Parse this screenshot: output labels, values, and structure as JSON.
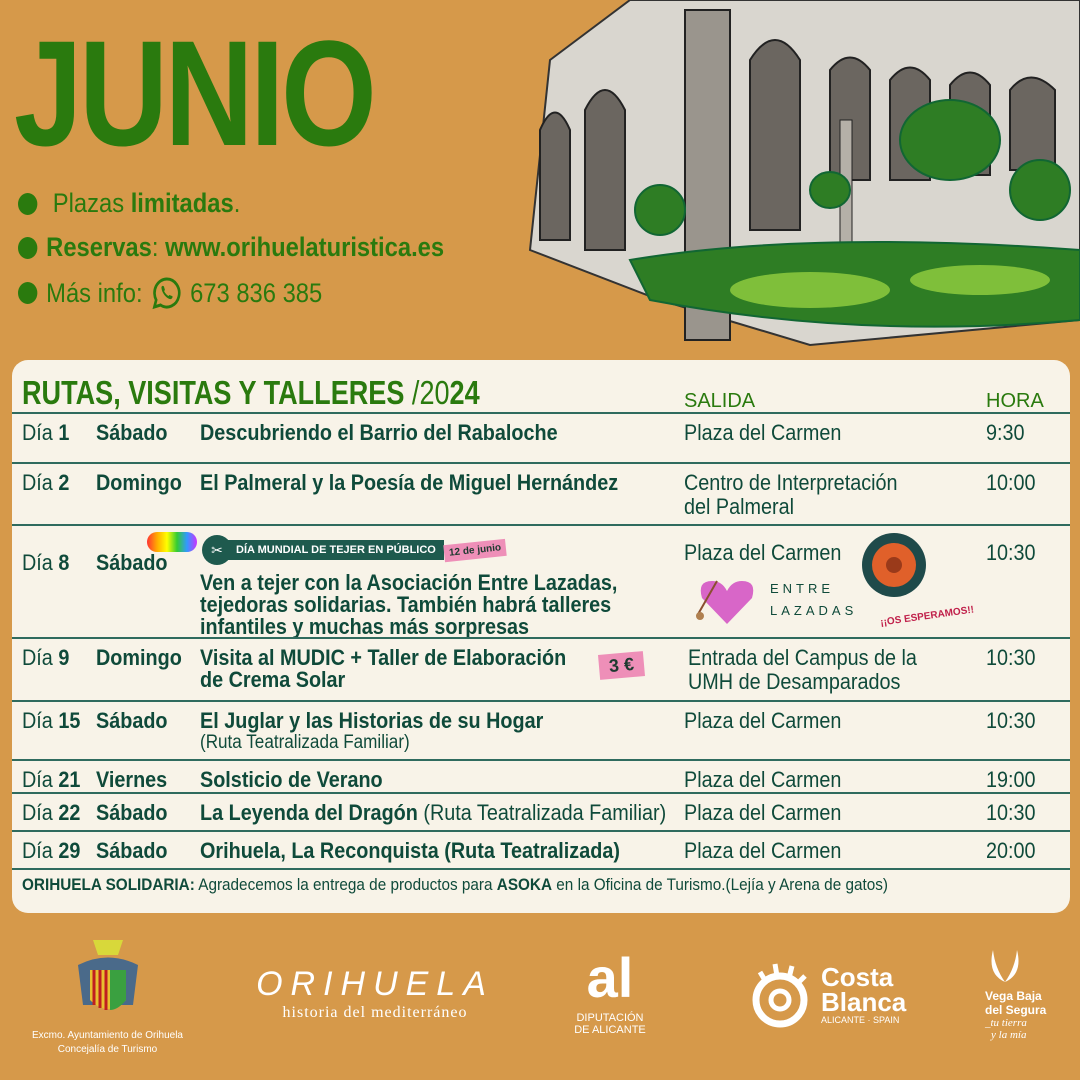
{
  "header": {
    "title": "JUNIO",
    "info": [
      {
        "pre": "Plazas ",
        "bold": "limitadas",
        "post": "."
      },
      {
        "bold": "Reservas",
        "post": ": ",
        "bold2": "www.orihuelaturistica.es"
      },
      {
        "pre": "Más info: ",
        "phone": "673 836 385",
        "icon": "whatsapp-icon"
      }
    ]
  },
  "schedule": {
    "title": "RUTAS, VISITAS Y TALLERES",
    "year_thin": " /20",
    "year_bold": "24",
    "col_salida": "SALIDA",
    "col_hora": "HORA",
    "rows": [
      {
        "dia": "Día ",
        "num": "1",
        "weekday": "Sábado",
        "event": "Descubriendo el Barrio del Rabaloche",
        "salida": "Plaza del Carmen",
        "hora": "9:30"
      },
      {
        "dia": "Día ",
        "num": "2",
        "weekday": "Domingo",
        "event": "El Palmeral y la Poesía de Miguel Hernández",
        "salida": "Centro de Interpretación",
        "salida2": "del Palmeral",
        "hora": "10:00"
      },
      {
        "dia": "Día ",
        "num": "8",
        "weekday": "Sábado",
        "badge": "DÍA MUNDIAL DE TEJER EN PÚBLICO",
        "badge_date": "12 de junio",
        "event": "Ven a tejer con la Asociación Entre Lazadas,",
        "event2": "tejedoras solidarias. También habrá talleres",
        "event3": "infantiles y muchas más sorpresas",
        "salida": "Plaza del Carmen",
        "logo1": "ENTRE",
        "logo2": "LAZADAS",
        "note": "¡¡OS ESPERAMOS!!",
        "hora": "10:30"
      },
      {
        "dia": "Día ",
        "num": "9",
        "weekday": "Domingo",
        "event": "Visita al MUDIC + Taller de Elaboración",
        "event2": "de Crema Solar",
        "price": "3 €",
        "salida": "Entrada del Campus de la",
        "salida2": "UMH de Desamparados",
        "hora": "10:30"
      },
      {
        "dia": "Día ",
        "num": "15",
        "weekday": "Sábado",
        "event": "El Juglar y las Historias de su Hogar",
        "event2": "(Ruta Teatralizada Familiar)",
        "salida": "Plaza del Carmen",
        "hora": "10:30"
      },
      {
        "dia": "Día ",
        "num": "21",
        "weekday": "Viernes",
        "event": "Solsticio de Verano",
        "salida": "Plaza del Carmen",
        "hora": "19:00"
      },
      {
        "dia": "Día ",
        "num": "22",
        "weekday": "Sábado",
        "event": "La Leyenda del Dragón",
        "event_thin": " (Ruta Teatralizada Familiar)",
        "salida": "Plaza del Carmen",
        "hora": "10:30"
      },
      {
        "dia": "Día ",
        "num": "29",
        "weekday": "Sábado",
        "event": "Orihuela, La Reconquista (Ruta Teatralizada)",
        "salida": "Plaza del Carmen",
        "hora": "20:00"
      }
    ],
    "footer": {
      "bold": "ORIHUELA SOLIDARIA:",
      "text": " Agradecemos la entrega de productos para ",
      "bold2": "ASOKA",
      "text2": " en la Oficina de Turismo.(Lejía y Arena de gatos)"
    }
  },
  "logos": {
    "ayto1": "Excmo. Ayuntamiento de Orihuela",
    "ayto2": "Concejalía de Turismo",
    "orihuela": "ORIHUELA",
    "orihuela_sub": "historia del mediterráneo",
    "dip1": "DIPUTACIÓN",
    "dip2": "DE ALICANTE",
    "costa1": "Costa",
    "costa2": "Blanca",
    "costa3": "ALICANTE · SPAIN",
    "vega1": "Vega Baja",
    "vega2": "del Segura",
    "vega3": "_tu tierra",
    "vega4": "y la mía"
  },
  "colors": {
    "background": "#D6994A",
    "green": "#2A7A0E",
    "panel": "#F8F3E8",
    "text": "#0F4A3A",
    "pink": "#EE8FB8"
  }
}
